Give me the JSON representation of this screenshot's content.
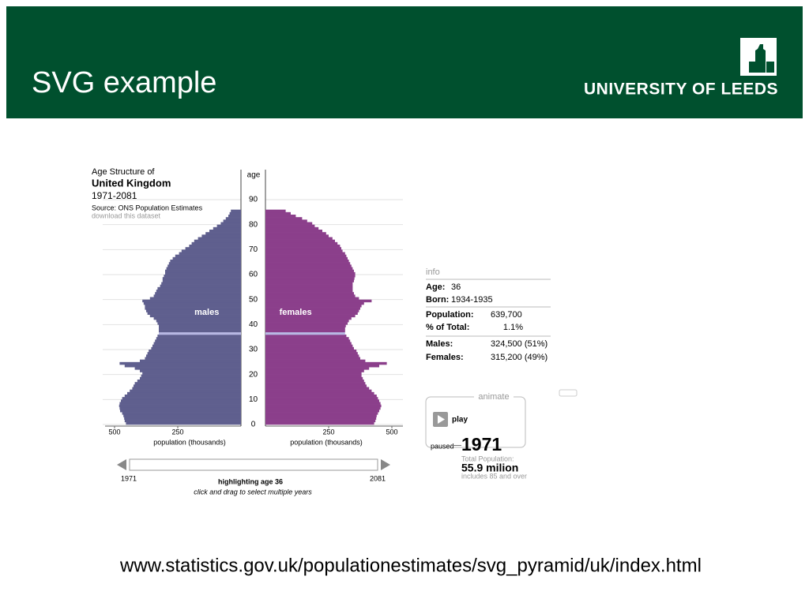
{
  "header": {
    "title": "SVG example",
    "logo": "UNIVERSITY OF LEEDS"
  },
  "chart_data": {
    "type": "pyramid",
    "title": "Age Structure of",
    "subtitle": "United Kingdom",
    "period": "1971-2081",
    "source": "Source: ONS Population Estimates",
    "download": "download this dataset",
    "y_label": "age",
    "x_label_left": "population (thousands)",
    "x_label_right": "population (thousands)",
    "ylim": [
      0,
      90
    ],
    "yticks": [
      0,
      10,
      20,
      30,
      40,
      50,
      60,
      70,
      80,
      90
    ],
    "xlim": [
      0,
      500
    ],
    "xticks": [
      250,
      500
    ],
    "grid": true,
    "ages": [
      0,
      1,
      2,
      3,
      4,
      5,
      6,
      7,
      8,
      9,
      10,
      11,
      12,
      13,
      14,
      15,
      16,
      17,
      18,
      19,
      20,
      21,
      22,
      23,
      24,
      25,
      26,
      27,
      28,
      29,
      30,
      31,
      32,
      33,
      34,
      35,
      36,
      37,
      38,
      39,
      40,
      41,
      42,
      43,
      44,
      45,
      46,
      47,
      48,
      49,
      50,
      51,
      52,
      53,
      54,
      55,
      56,
      57,
      58,
      59,
      60,
      61,
      62,
      63,
      64,
      65,
      66,
      67,
      68,
      69,
      70,
      71,
      72,
      73,
      74,
      75,
      76,
      77,
      78,
      79,
      80,
      81,
      82,
      83,
      84,
      85
    ],
    "highlight_color": "#b8b8e4",
    "series": [
      {
        "name": "males",
        "color": "#5f5f8e",
        "side": "left",
        "values": [
          455,
          460,
          462,
          465,
          470,
          478,
          480,
          482,
          480,
          475,
          470,
          460,
          450,
          440,
          430,
          425,
          420,
          410,
          400,
          395,
          390,
          400,
          420,
          460,
          480,
          400,
          380,
          375,
          370,
          365,
          355,
          350,
          345,
          340,
          335,
          330,
          325,
          325,
          325,
          325,
          330,
          335,
          345,
          360,
          370,
          375,
          380,
          380,
          385,
          390,
          360,
          345,
          340,
          335,
          330,
          320,
          315,
          310,
          310,
          305,
          300,
          300,
          295,
          290,
          285,
          280,
          270,
          260,
          245,
          235,
          220,
          205,
          195,
          185,
          170,
          155,
          140,
          125,
          110,
          95,
          80,
          70,
          60,
          50,
          45,
          40
        ]
      },
      {
        "name": "females",
        "color": "#8b3f8b",
        "side": "right",
        "values": [
          430,
          435,
          438,
          440,
          445,
          450,
          455,
          458,
          455,
          450,
          445,
          440,
          430,
          420,
          410,
          400,
          395,
          390,
          385,
          380,
          380,
          390,
          410,
          450,
          480,
          395,
          375,
          370,
          365,
          360,
          350,
          345,
          340,
          335,
          330,
          320,
          315,
          315,
          315,
          318,
          325,
          330,
          340,
          355,
          365,
          370,
          375,
          380,
          390,
          420,
          370,
          355,
          350,
          345,
          345,
          345,
          345,
          350,
          352,
          355,
          355,
          350,
          345,
          340,
          335,
          330,
          325,
          320,
          315,
          305,
          300,
          295,
          285,
          275,
          265,
          250,
          240,
          225,
          210,
          195,
          185,
          165,
          145,
          120,
          100,
          80
        ]
      }
    ]
  },
  "slider": {
    "start": "1971",
    "end": "2081",
    "status": "highlighting age 36",
    "hint": "click and drag to select multiple years"
  },
  "info": {
    "heading": "info",
    "age_label": "Age:",
    "age": 36,
    "born_label": "Born:",
    "born": "1934-1935",
    "population_label": "Population:",
    "population": "639,700",
    "share_label": "% of Total:",
    "share": "1.1%",
    "males_label": "Males:",
    "males": "324,500 (51%)",
    "females_label": "Females:",
    "females": "315,200 (49%)"
  },
  "animate": {
    "heading": "animate",
    "play": "play",
    "state": "paused",
    "year": "1971",
    "total_label": "Total Population:",
    "total": "55.9 milion",
    "note": "includes 85 and over"
  },
  "footer": {
    "url": "www.statistics.gov.uk/populationestimates/svg_pyramid/uk/index.html"
  }
}
